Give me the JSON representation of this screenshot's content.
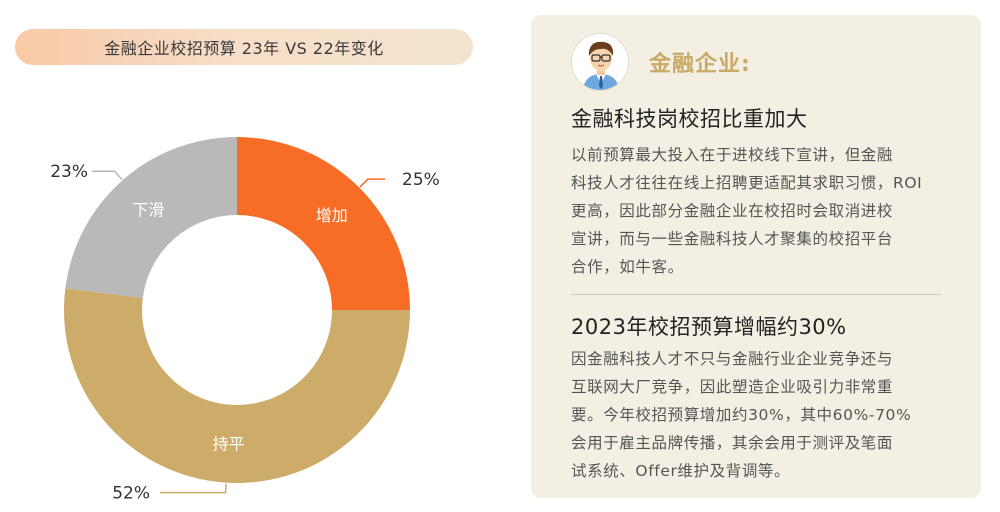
{
  "header": {
    "title": "金融企业校招预算 23年 VS 22年变化"
  },
  "chart_data": {
    "type": "pie",
    "donut": true,
    "title": "金融企业校招预算 23年 VS 22年变化",
    "slices": [
      {
        "label": "增加",
        "value": 25,
        "value_label": "25%",
        "color": "#f76d25"
      },
      {
        "label": "持平",
        "value": 52,
        "value_label": "52%",
        "color": "#cdab69"
      },
      {
        "label": "下滑",
        "value": 23,
        "value_label": "23%",
        "color": "#b9b9b9"
      }
    ]
  },
  "panel": {
    "heading": "金融企业:",
    "avatar_icon": "person-avatar-icon",
    "sections": [
      {
        "title": "金融科技岗校招比重加大",
        "lines": [
          "以前预算最大投入在于进校线下宣讲，但金融",
          "科技人才往往在线上招聘更适配其求职习惯，ROI",
          "更高，因此部分金融企业在校招时会取消进校",
          "宣讲，而与一些金融科技人才聚集的校招平台",
          "合作，如牛客。"
        ]
      },
      {
        "title": "2023年校招预算增幅约30%",
        "lines": [
          "因金融科技人才不只与金融行业企业竞争还与",
          "互联网大厂竞争，因此塑造企业吸引力非常重",
          "要。今年校招预算增加约30%，其中60%-70%",
          "会用于雇主品牌传播，其余会用于测评及笔面",
          "试系统、Offer维护及背调等。"
        ]
      }
    ]
  }
}
